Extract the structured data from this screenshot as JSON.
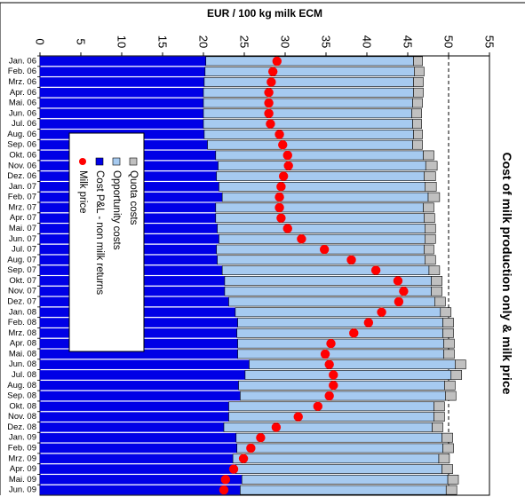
{
  "chart_data": {
    "type": "bar",
    "orientation": "horizontal",
    "stacked": true,
    "title": "Cost of milk production only & milk price",
    "xlabel": "EUR / 100 kg milk ECM",
    "xlim": [
      0,
      55
    ],
    "xticks": [
      0,
      5,
      10,
      15,
      20,
      25,
      30,
      35,
      40,
      45,
      50,
      55
    ],
    "reference_line": 50,
    "categories": [
      "Jan. 06",
      "Feb. 06",
      "Mrz. 06",
      "Apr. 06",
      "Mai. 06",
      "Jun. 06",
      "Jul. 06",
      "Aug. 06",
      "Sep. 06",
      "Okt. 06",
      "Nov. 06",
      "Dez. 06",
      "Jan. 07",
      "Feb. 07",
      "Mrz. 07",
      "Apr. 07",
      "Mai. 07",
      "Jun. 07",
      "Jul. 07",
      "Aug. 07",
      "Sep. 07",
      "Okt. 07",
      "Nov. 07",
      "Dez. 07",
      "Jan. 08",
      "Feb. 08",
      "Mrz. 08",
      "Apr. 08",
      "Mai. 08",
      "Jun. 08",
      "Jul. 08",
      "Aug. 08",
      "Sep. 08",
      "Okt. 08",
      "Nov. 08",
      "Dez. 08",
      "Jan. 09",
      "Feb. 09",
      "Mrz. 09",
      "Apr. 09",
      "Mai. 09",
      "Jun. 09"
    ],
    "series": [
      {
        "name": "Cost P&L - non milk returns",
        "color": "#0000e6",
        "kind": "bar",
        "values": [
          20.3,
          20.2,
          20.1,
          20.0,
          20.0,
          20.0,
          20.0,
          20.1,
          20.5,
          21.5,
          21.8,
          21.6,
          21.9,
          22.3,
          21.5,
          21.5,
          21.7,
          21.9,
          21.6,
          21.7,
          22.3,
          22.6,
          22.6,
          23.1,
          23.9,
          24.2,
          24.1,
          24.2,
          24.2,
          25.6,
          25.1,
          24.3,
          24.5,
          23.1,
          23.1,
          22.5,
          24.0,
          24.1,
          23.6,
          24.0,
          24.7,
          24.5
        ]
      },
      {
        "name": "Opportunity costs",
        "color": "#a6caf0",
        "kind": "bar",
        "values": [
          25.4,
          25.6,
          25.6,
          25.7,
          25.6,
          25.5,
          25.6,
          25.6,
          25.1,
          25.4,
          25.4,
          25.4,
          25.2,
          25.2,
          25.4,
          25.5,
          25.4,
          25.2,
          25.4,
          25.4,
          25.3,
          25.3,
          25.3,
          25.2,
          25.1,
          25.1,
          25.2,
          25.2,
          25.2,
          25.2,
          25.2,
          25.2,
          25.1,
          25.1,
          25.1,
          25.5,
          25.2,
          25.2,
          25.2,
          25.2,
          25.2,
          25.2
        ]
      },
      {
        "name": "Quota costs",
        "color": "#c0c0c0",
        "kind": "bar",
        "values": [
          1.1,
          1.2,
          1.2,
          1.2,
          1.2,
          1.2,
          1.1,
          1.1,
          1.2,
          1.3,
          1.4,
          1.4,
          1.4,
          1.4,
          1.3,
          1.3,
          1.3,
          1.3,
          1.2,
          1.3,
          1.3,
          1.3,
          1.3,
          1.3,
          1.3,
          1.3,
          1.3,
          1.3,
          1.3,
          1.3,
          1.3,
          1.3,
          1.3,
          1.3,
          1.3,
          1.3,
          1.3,
          1.3,
          1.3,
          1.3,
          1.3,
          1.3
        ]
      },
      {
        "name": "Milk price",
        "color": "#ff0000",
        "kind": "marker",
        "values": [
          29.0,
          28.5,
          28.3,
          28.0,
          28.0,
          28.0,
          28.2,
          29.3,
          29.7,
          30.3,
          30.4,
          29.8,
          29.5,
          29.3,
          29.3,
          29.5,
          30.3,
          32.0,
          34.8,
          38.1,
          41.1,
          43.8,
          44.5,
          43.9,
          41.8,
          40.2,
          38.4,
          35.6,
          34.9,
          35.4,
          35.9,
          35.9,
          35.4,
          34.0,
          31.6,
          28.9,
          27.0,
          25.8,
          24.9,
          23.7,
          22.7,
          22.5
        ]
      }
    ],
    "legend": {
      "placement": "left-middle",
      "entries": [
        "Quota costs",
        "Opportunity costs",
        "Cost P&L - non milk returns",
        "Milk price"
      ]
    }
  }
}
